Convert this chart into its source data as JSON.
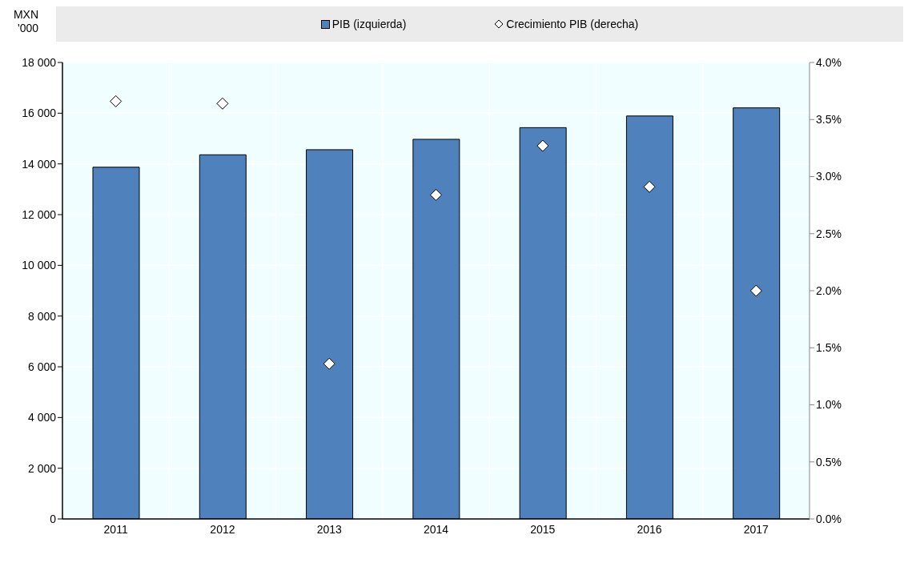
{
  "chart_data": {
    "type": "bar",
    "ylabel": "MXN '000",
    "categories": [
      "2011",
      "2012",
      "2013",
      "2014",
      "2015",
      "2016",
      "2017"
    ],
    "series": [
      {
        "name": "PIB (izquierda)",
        "color": "#4f81bd",
        "values": [
          13870,
          14360,
          14560,
          14970,
          15430,
          15890,
          16210
        ]
      },
      {
        "name": "Crecimiento PIB (derecha)",
        "type": "scatter",
        "axis": "y2",
        "marker": "diamond",
        "color": "#ffffff",
        "values": [
          3.66,
          3.64,
          1.36,
          2.84,
          3.27,
          2.91,
          2.0
        ]
      }
    ],
    "ylim": [
      0,
      18000
    ],
    "yticks": [
      0,
      {
        "value": 2000,
        "label": "2 000"
      },
      {
        "value": 4000,
        "label": "4 000"
      },
      {
        "value": 6000,
        "label": "6 000"
      },
      {
        "value": 8000,
        "label": "8 000"
      },
      {
        "value": 10000,
        "label": "10 000"
      },
      {
        "value": 12000,
        "label": "12 000"
      },
      {
        "value": 14000,
        "label": "14 000"
      },
      {
        "value": 16000,
        "label": "16 000"
      },
      {
        "value": 18000,
        "label": "18 000"
      }
    ],
    "y2lim": [
      0,
      4
    ],
    "y2ticks": [
      {
        "value": 0,
        "label": "0.0%"
      },
      {
        "value": 0.5,
        "label": "0.5%"
      },
      {
        "value": 1,
        "label": "1.0%"
      },
      {
        "value": 1.5,
        "label": "1.5%"
      },
      {
        "value": 2,
        "label": "2.0%"
      },
      {
        "value": 2.5,
        "label": "2.5%"
      },
      {
        "value": 3,
        "label": "3.0%"
      },
      {
        "value": 3.5,
        "label": "3.5%"
      },
      {
        "value": 4,
        "label": "4.0%"
      }
    ],
    "grid": true,
    "legend": "top"
  }
}
